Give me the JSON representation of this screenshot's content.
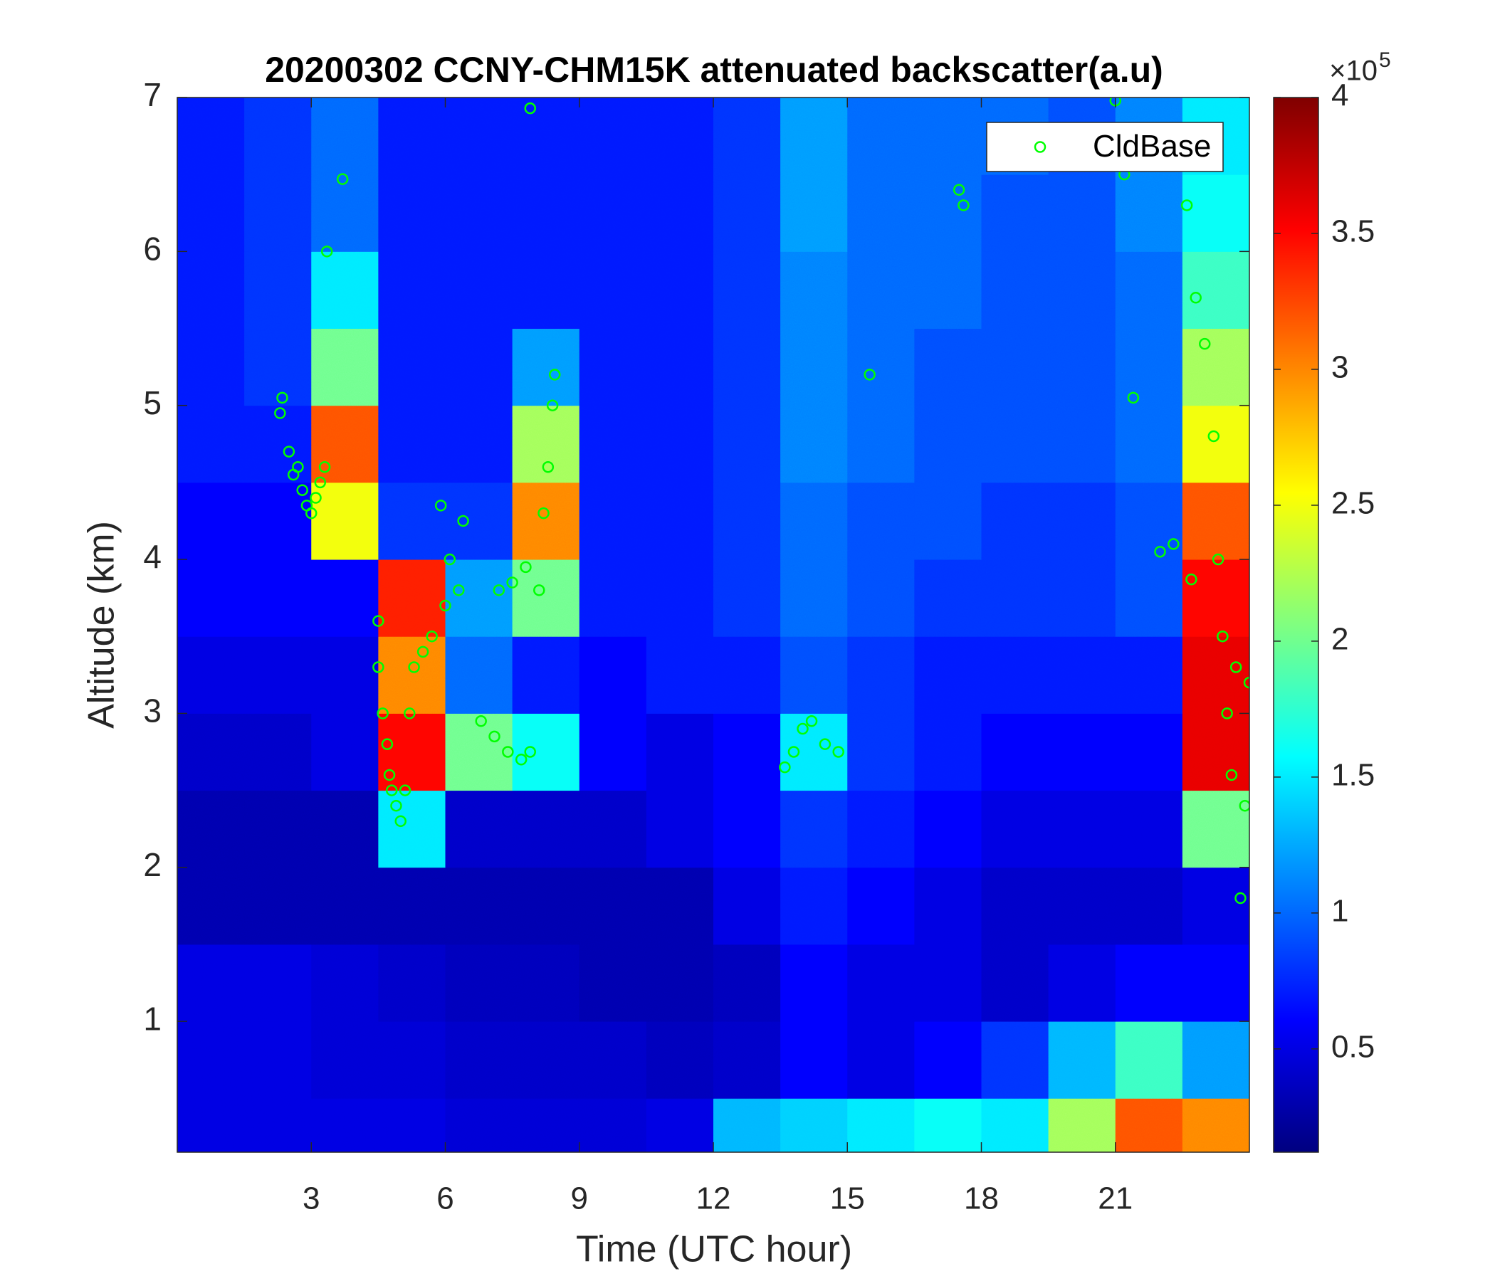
{
  "chart_data": {
    "type": "heatmap",
    "title": "20200302 CCNY-CHM15K attenuated backscatter(a.u)",
    "xlabel": "Time (UTC hour)",
    "ylabel": "Altitude (km)",
    "xlim": [
      0,
      24
    ],
    "ylim": [
      0.15,
      7
    ],
    "xticks": [
      3,
      6,
      9,
      12,
      15,
      18,
      21
    ],
    "yticks": [
      1,
      2,
      3,
      4,
      5,
      6,
      7
    ],
    "colormap": "jet",
    "clim": [
      0.12,
      4
    ],
    "cticks": [
      0.5,
      1,
      1.5,
      2,
      2.5,
      3,
      3.5,
      4
    ],
    "colorbar_multiplier": "×10",
    "colorbar_exponent": "5",
    "x_edges": [
      0,
      1.5,
      3,
      4.5,
      6,
      7.5,
      9,
      10.5,
      12,
      13.5,
      15,
      16.5,
      18,
      19.5,
      21,
      22.5,
      24
    ],
    "y_edges": [
      0.15,
      0.5,
      1,
      1.5,
      2,
      2.5,
      3,
      3.5,
      4,
      4.5,
      5,
      5.5,
      6,
      6.5,
      7
    ],
    "z": [
      [
        0.5,
        0.5,
        0.5,
        0.5,
        0.45,
        0.45,
        0.45,
        0.5,
        1.3,
        1.4,
        1.5,
        1.6,
        1.5,
        2.2,
        3.2,
        3.0
      ],
      [
        0.5,
        0.5,
        0.45,
        0.45,
        0.4,
        0.4,
        0.4,
        0.35,
        0.4,
        0.6,
        0.5,
        0.6,
        0.8,
        1.3,
        1.8,
        1.2
      ],
      [
        0.5,
        0.5,
        0.45,
        0.4,
        0.35,
        0.35,
        0.3,
        0.3,
        0.35,
        0.6,
        0.5,
        0.5,
        0.4,
        0.5,
        0.6,
        0.6
      ],
      [
        0.3,
        0.3,
        0.3,
        0.3,
        0.3,
        0.3,
        0.3,
        0.3,
        0.5,
        0.7,
        0.6,
        0.5,
        0.4,
        0.4,
        0.4,
        0.5
      ],
      [
        0.3,
        0.3,
        0.3,
        1.5,
        0.4,
        0.4,
        0.4,
        0.5,
        0.6,
        0.8,
        0.7,
        0.6,
        0.5,
        0.5,
        0.5,
        2.0
      ],
      [
        0.4,
        0.4,
        0.5,
        3.5,
        2.0,
        1.6,
        0.6,
        0.5,
        0.6,
        1.5,
        0.8,
        0.7,
        0.6,
        0.6,
        0.6,
        3.6
      ],
      [
        0.5,
        0.5,
        0.5,
        3.0,
        1.0,
        0.7,
        0.6,
        0.7,
        0.7,
        0.9,
        0.8,
        0.7,
        0.7,
        0.7,
        0.7,
        3.6
      ],
      [
        0.6,
        0.6,
        0.6,
        3.4,
        1.2,
        2.0,
        0.7,
        0.7,
        0.8,
        1.0,
        0.9,
        0.8,
        0.8,
        0.8,
        0.9,
        3.5
      ],
      [
        0.6,
        0.6,
        2.5,
        0.8,
        0.8,
        3.0,
        0.7,
        0.7,
        0.8,
        1.0,
        0.9,
        0.9,
        0.8,
        0.8,
        0.9,
        3.2
      ],
      [
        0.7,
        0.7,
        3.2,
        0.7,
        0.7,
        2.2,
        0.7,
        0.7,
        0.8,
        1.1,
        1.0,
        0.9,
        0.9,
        0.9,
        1.0,
        2.5
      ],
      [
        0.7,
        0.8,
        2.0,
        0.7,
        0.7,
        1.2,
        0.7,
        0.7,
        0.8,
        1.1,
        1.0,
        0.9,
        0.9,
        0.9,
        1.0,
        2.2
      ],
      [
        0.7,
        0.8,
        1.5,
        0.7,
        0.7,
        0.7,
        0.7,
        0.7,
        0.8,
        1.1,
        1.0,
        1.0,
        0.9,
        0.9,
        1.0,
        1.8
      ],
      [
        0.7,
        0.8,
        1.0,
        0.7,
        0.7,
        0.7,
        0.7,
        0.7,
        0.8,
        1.2,
        1.0,
        1.0,
        0.9,
        0.9,
        1.1,
        1.6
      ],
      [
        0.7,
        0.8,
        1.0,
        0.7,
        0.7,
        0.7,
        0.7,
        0.7,
        0.8,
        1.2,
        1.0,
        1.0,
        1.0,
        0.9,
        1.1,
        1.5
      ]
    ],
    "series": [
      {
        "name": "CldBase",
        "color": "#00ff00",
        "x": [
          2.3,
          2.35,
          2.5,
          2.6,
          2.7,
          2.8,
          2.9,
          3.0,
          3.1,
          3.2,
          3.3,
          3.35,
          3.7,
          4.5,
          4.5,
          4.6,
          4.7,
          4.75,
          4.8,
          4.9,
          5.0,
          5.1,
          5.2,
          5.3,
          5.5,
          5.7,
          6.0,
          5.9,
          6.1,
          6.3,
          6.4,
          6.8,
          7.1,
          7.4,
          7.7,
          7.9,
          7.2,
          7.5,
          7.8,
          8.1,
          8.2,
          8.3,
          8.4,
          8.45,
          7.9,
          13.6,
          13.8,
          14.0,
          14.2,
          14.5,
          14.8,
          15.5,
          17.5,
          17.6,
          21.0,
          21.2,
          21.4,
          22.0,
          22.3,
          22.7,
          22.6,
          22.8,
          23.0,
          23.2,
          23.3,
          23.4,
          23.5,
          23.6,
          23.7,
          23.9,
          23.8,
          24.0
        ],
        "y": [
          4.95,
          5.05,
          4.7,
          4.55,
          4.6,
          4.45,
          4.35,
          4.3,
          4.4,
          4.5,
          4.6,
          6.0,
          6.47,
          3.6,
          3.3,
          3.0,
          2.8,
          2.6,
          2.5,
          2.4,
          2.3,
          2.5,
          3.0,
          3.3,
          3.4,
          3.5,
          3.7,
          4.35,
          4.0,
          3.8,
          4.25,
          2.95,
          2.85,
          2.75,
          2.7,
          2.75,
          3.8,
          3.85,
          3.95,
          3.8,
          4.3,
          4.6,
          5.0,
          5.2,
          6.93,
          2.65,
          2.75,
          2.9,
          2.95,
          2.8,
          2.75,
          5.2,
          6.4,
          6.3,
          6.98,
          6.5,
          5.05,
          4.05,
          4.1,
          3.87,
          6.3,
          5.7,
          5.4,
          4.8,
          4.0,
          3.5,
          3.0,
          2.6,
          3.3,
          2.4,
          1.8,
          3.2
        ]
      }
    ],
    "legend": "northeast"
  }
}
